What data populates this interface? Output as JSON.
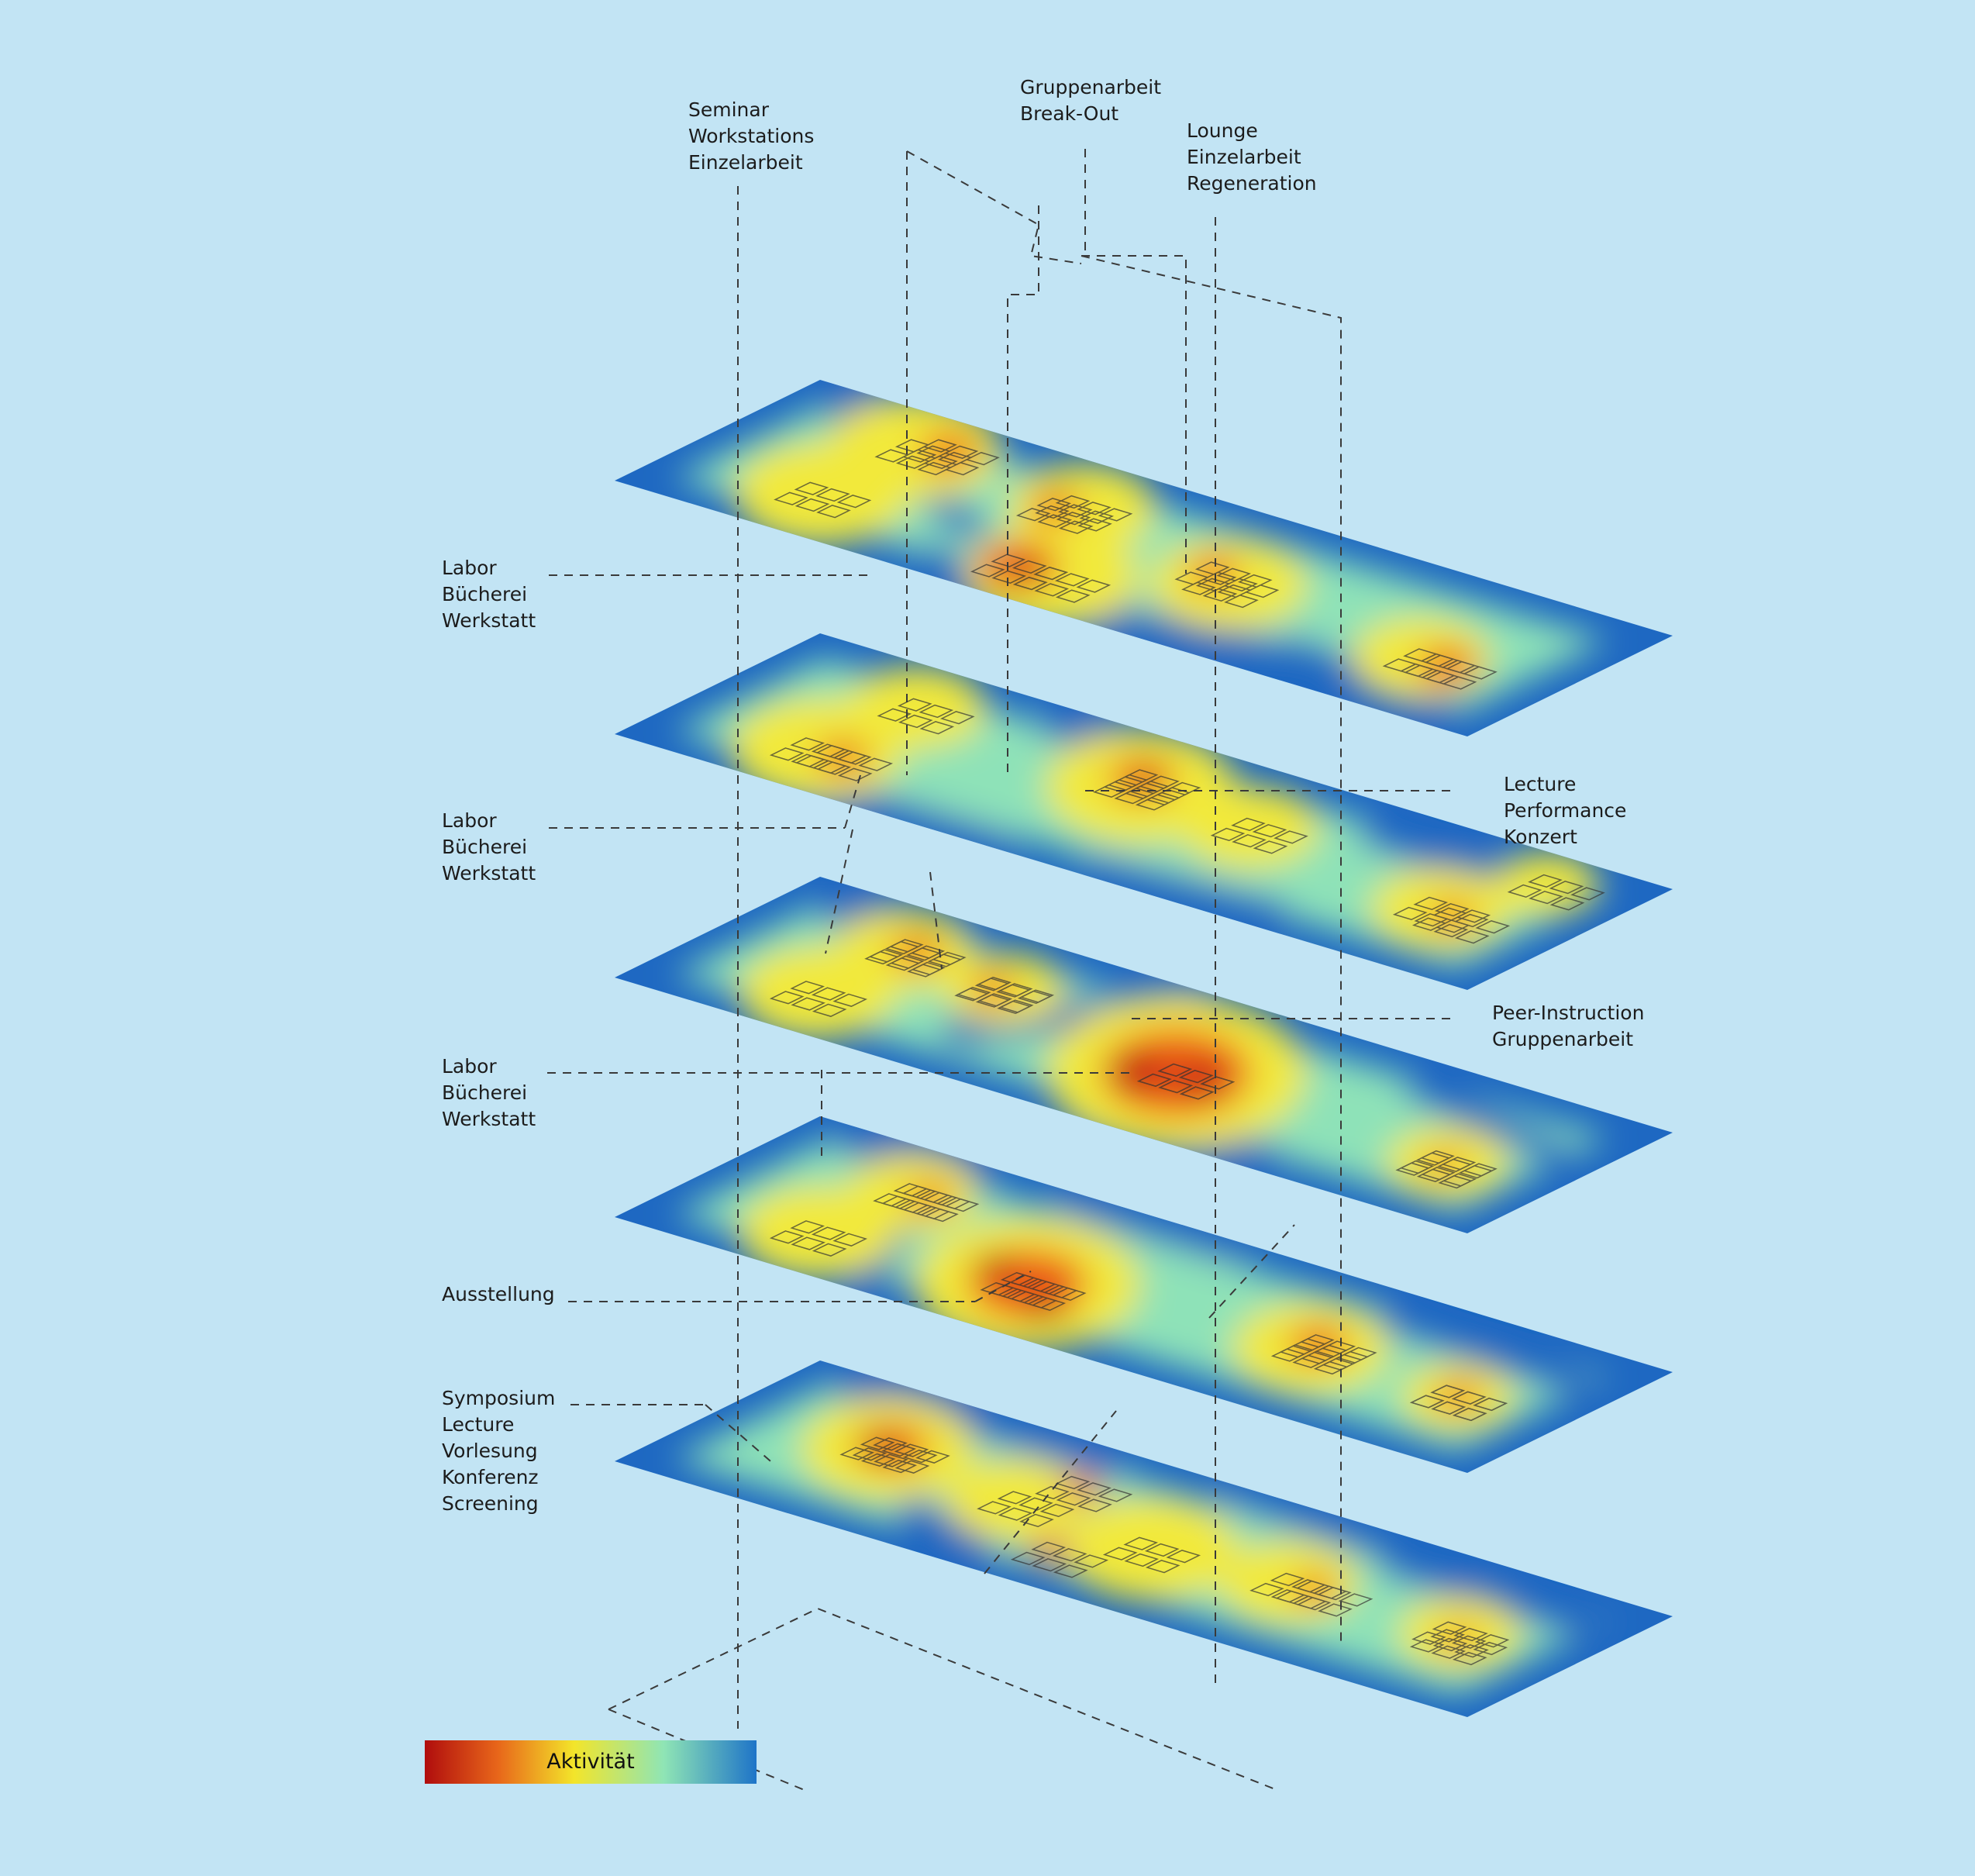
{
  "labels": {
    "top1": [
      "Seminar",
      "Workstations",
      "Einzelarbeit"
    ],
    "top2": [
      "Gruppenarbeit",
      "Break-Out"
    ],
    "top3": [
      "Lounge",
      "Einzelarbeit",
      "Regeneration"
    ],
    "floor1": [
      "Labor",
      "Bücherei",
      "Werkstatt"
    ],
    "floor2": [
      "Labor",
      "Bücherei",
      "Werkstatt"
    ],
    "floor3": [
      "Labor",
      "Bücherei",
      "Werkstatt"
    ],
    "floor4": [
      "Ausstellung"
    ],
    "floor5": [
      "Symposium",
      "Lecture",
      "Vorlesung",
      "Konferenz",
      "Screening"
    ],
    "right1": [
      "Lecture",
      "Performance",
      "Konzert"
    ],
    "right2": [
      "Peer-Instruction",
      "Gruppenarbeit"
    ]
  },
  "legend": {
    "title": "Aktivität",
    "colors": [
      "#b00d0d",
      "#e8661a",
      "#f3e52a",
      "#8fe5b5",
      "#1e74c8"
    ]
  },
  "heat_colors": {
    "cold": "#1e68c2",
    "cool": "#8ee2b8",
    "warm": "#f2e93a",
    "hot": "#ee5a16",
    "core": "#b80f0c"
  }
}
